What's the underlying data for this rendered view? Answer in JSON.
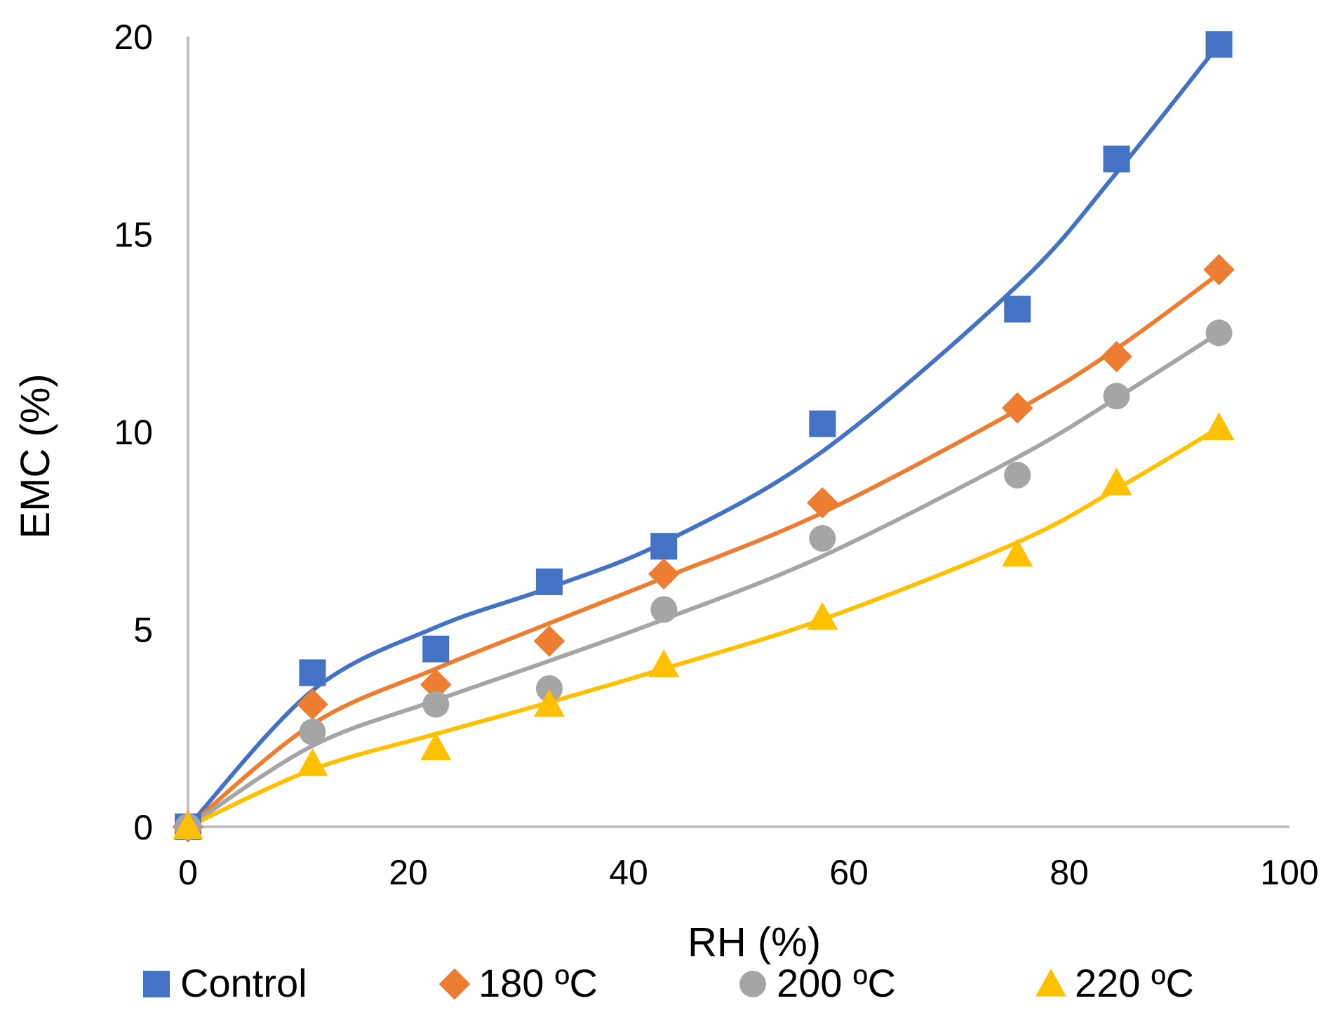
{
  "chart_data": {
    "type": "scatter",
    "title": "",
    "xlabel": "RH (%)",
    "ylabel": "EMC (%)",
    "xlim": [
      0,
      100
    ],
    "ylim": [
      0,
      20
    ],
    "xticks": [
      0,
      20,
      40,
      60,
      80,
      100
    ],
    "yticks": [
      0,
      5,
      10,
      15,
      20
    ],
    "grid": false,
    "legend_position": "bottom",
    "x": [
      0,
      11.3,
      22.5,
      32.8,
      43.2,
      57.6,
      75.3,
      84.3,
      93.6
    ],
    "series": [
      {
        "name": "Control",
        "marker": "square",
        "color": "#4472C4",
        "values": [
          0,
          3.9,
          4.5,
          6.2,
          7.1,
          10.2,
          13.1,
          16.9,
          19.8
        ],
        "fit": [
          0,
          3.45,
          5.05,
          6.05,
          7.2,
          9.5,
          13.7,
          16.55,
          19.8
        ]
      },
      {
        "name": "180 ºC",
        "marker": "diamond",
        "color": "#ED7D31",
        "values": [
          0,
          3.1,
          3.6,
          4.7,
          6.4,
          8.2,
          10.6,
          11.9,
          14.1
        ],
        "fit": [
          0,
          2.6,
          4.0,
          5.15,
          6.3,
          7.95,
          10.55,
          12.1,
          14.0
        ]
      },
      {
        "name": "200 ºC",
        "marker": "circle",
        "color": "#A5A5A5",
        "values": [
          0,
          2.4,
          3.1,
          3.5,
          5.5,
          7.3,
          8.9,
          10.9,
          12.5
        ],
        "fit": [
          0,
          2.05,
          3.2,
          4.2,
          5.25,
          6.85,
          9.35,
          10.85,
          12.5
        ]
      },
      {
        "name": "220 ºC",
        "marker": "triangle",
        "color": "#FFC000",
        "values": [
          0,
          1.6,
          2.0,
          3.1,
          4.1,
          5.3,
          6.9,
          8.7,
          10.1
        ],
        "fit": [
          0,
          1.45,
          2.35,
          3.15,
          4.0,
          5.25,
          7.2,
          8.55,
          10.1
        ]
      }
    ]
  }
}
